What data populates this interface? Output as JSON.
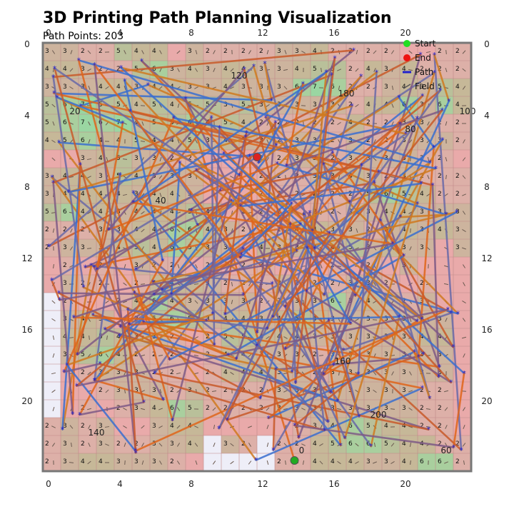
{
  "chart_data": {
    "type": "scatter",
    "title": "3D Printing Path Planning Visualization",
    "subtitle": "Path Points: 203",
    "grid_size": [
      24,
      24
    ],
    "xlim": [
      0,
      24
    ],
    "ylim": [
      0,
      24
    ],
    "y_axis_inverted": true,
    "x_ticks": [
      0,
      4,
      8,
      12,
      16,
      20
    ],
    "y_ticks": [
      0,
      4,
      8,
      12,
      16,
      20
    ],
    "grid": true,
    "legend_position": "top-right",
    "legend": [
      {
        "label": "Start",
        "color": "#22dd22",
        "marker": "circle"
      },
      {
        "label": "End",
        "color": "#ee1111",
        "marker": "circle"
      },
      {
        "label": "Path",
        "color": "#2222cc",
        "marker": "line"
      },
      {
        "label": "Field",
        "color": "#555555",
        "marker": "arrow"
      }
    ],
    "start_point": {
      "x": 14.1,
      "y": 23.4,
      "color": "#22aa22"
    },
    "end_point": {
      "x": 12.0,
      "y": 6.4,
      "color": "#dd2222"
    },
    "path_points_count": 203,
    "path_colors": [
      "#3a6fd0",
      "#e0651a",
      "#7e5a86",
      "#c95a2a",
      "#6a6aa8",
      "#d07a20"
    ],
    "point_labels": [
      {
        "x": 11,
        "y": 2.0,
        "text": "120"
      },
      {
        "x": 17,
        "y": 3.0,
        "text": "180"
      },
      {
        "x": 1.8,
        "y": 4.0,
        "text": "20"
      },
      {
        "x": 23.8,
        "y": 4.0,
        "text": "100"
      },
      {
        "x": 20.6,
        "y": 5.0,
        "text": "80"
      },
      {
        "x": 6.6,
        "y": 9.0,
        "text": "40"
      },
      {
        "x": 16.8,
        "y": 18.0,
        "text": "160"
      },
      {
        "x": 18.8,
        "y": 21.0,
        "text": "200"
      },
      {
        "x": 3.0,
        "y": 22.0,
        "text": "140"
      },
      {
        "x": 14.5,
        "y": 23.0,
        "text": "0"
      },
      {
        "x": 22.6,
        "y": 23.0,
        "text": "60"
      }
    ],
    "field_rows": [
      "3 3 2 2 5 4 4 . 3 2 2 2 2 3 3 4 2 2 2 2 . . 2 2",
      "4 4 3 2 2 5 6 3 4 3 4 4 3 3 4 5 5 2 4 3 4 2 2 2",
      "3 3 3 4 4 3 4 4 3 3 4 3 3 3 6 7 6 2 2 3 4 3 5 4",
      "5 6 7 5 5 4 5 4 5 5 3 5 3 3 3 3 3 2 4 4 6 3 6 4",
      "5 6 7 6 7 4 5 5 6 4 5 4 2 2 2 2 2 4 2 2 3 3 2 2",
      "4 5 6 4 4 5 4 4 5 3 4 3 3 2 3 3 2 3 2 2 3 3 3 2",
      ". . 3 4 5 3 3 2 2 . . . 2 2 3 3 2 3 3 3 3 2 2 .",
      "3 4 4 3 5 4 3 3 3 . . . 2 2 2 3 3 4 3 2 3 2 2 2",
      "3 4 4 4 4 3 4 4 3 . . . 2 2 2 2 2 2 5 6 5 4 2 2",
      "5 6 4 4 3 4 4 4 5 4 . 2 2 2 . 2 2 3 3 4 4 3 3 3",
      "2 2 2 3 3 4 4 6 6 4 3 2 2 2 4 4 3 3 2 3 4 3 4 3",
      "2 3 3 3 4 5 4 6 5 3 3 . 4 3 3 3 4 5 3 4 3 3 . 3",
      ". 2 . 2 . 3 2 2 . 2 . 2 2 . . . 2 . 2 . 3 . . .",
      ". 3 2 2 . 2 4 4 4 3 2 2 2 3 2 2 2 3 3 2 . 2 . .",
      ". 2 . . 2 4 6 4 3 3 3 3 2 2 3 3 6 3 4 3 2 3 . .",
      ". 3 4 3 . 2 5 6 5 3 4 4 3 4 5 4 3 3 3 3 3 3 3 .",
      ". 4 4 5 4 3 3 2 . 2 5 5 4 4 4 3 3 3 3 3 3 4 4 .",
      ". 3 5 6 4 2 2 2 . 2 4 4 3 3 3 2 3 3 3 3 3 3 3 .",
      ". . 2 3 3 3 2 2 . 2 4 4 4 3 3 2 3 3 3 3 3 3 3 .",
      ". . . 2 3 3 3 2 3 2 2 2 2 3 3 3 3 3 3 3 3 2 2 .",
      ". . 2 . 2 3 4 6 5 2 2 2 2 3 3 3 3 3 3 3 3 2 2 .",
      "2 3 2 3 . . 3 4 4 . . . . . 2 3 4 6 5 4 4 2 2 .",
      "2 3 2 3 2 2 3 3 4 . 3 2 . 2 2 4 5 6 6 5 4 4 2 2",
      "2 3 4 4 3 3 3 2 . . . . . 2 2 4 4 4 3 3 4 6 6 2"
    ]
  }
}
